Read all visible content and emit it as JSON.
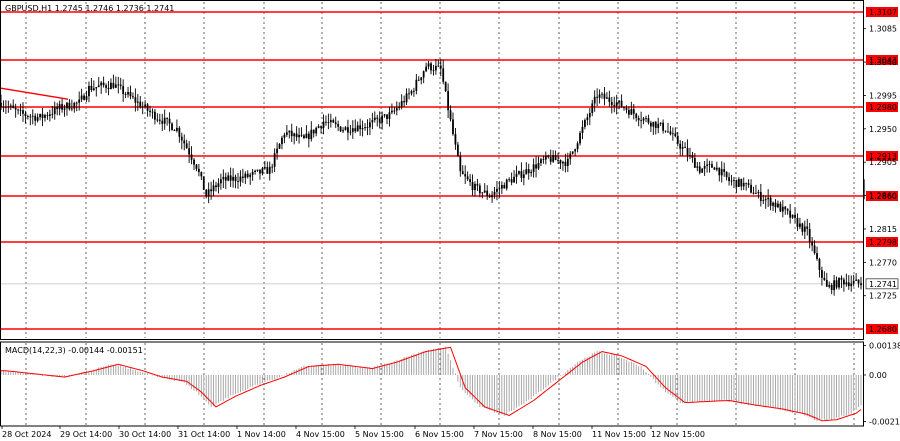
{
  "chart_data": [
    {
      "type": "candlestick",
      "title": "GBPUSD,H1  1.2745 1.2746 1.2736 1.2741",
      "colors": {
        "candle": "#000000",
        "level_line": "#ff0000",
        "level_label_bg": "#ff0000",
        "level_label_text": "#ffffff",
        "grid": "#000000",
        "price_line": "#c0c0c0"
      },
      "ylim": [
        1.2668,
        1.3121
      ],
      "y_ticks": [
        "1.3085",
        "1.3040",
        "1.2995",
        "1.2950",
        "1.2905",
        "1.2860",
        "1.2815",
        "1.2770",
        "1.2725"
      ],
      "levels": [
        "1.3107",
        "1.3043",
        "1.2980",
        "1.2913",
        "1.2860",
        "1.2798",
        "1.2680"
      ],
      "current_price": "1.2741",
      "trendline": {
        "from": {
          "x": "28 Oct 2024",
          "y": 1.3005
        },
        "to": {
          "x": "29 Oct 14:00",
          "y": 1.299
        }
      },
      "x_ticks": [
        "28 Oct 2024",
        "29 Oct 14:00",
        "30 Oct 14:00",
        "31 Oct 14:00",
        "1 Nov 14:00",
        "4 Nov 15:00",
        "5 Nov 15:00",
        "6 Nov 15:00",
        "7 Nov 15:00",
        "8 Nov 15:00",
        "11 Nov 15:00",
        "12 Nov 15:00"
      ],
      "close_path": [
        [
          0,
          1.2985
        ],
        [
          8,
          1.297
        ],
        [
          16,
          1.2965
        ],
        [
          24,
          1.2978
        ],
        [
          32,
          1.2985
        ],
        [
          36,
          1.3005
        ],
        [
          46,
          1.301
        ],
        [
          54,
          1.299
        ],
        [
          62,
          1.297
        ],
        [
          72,
          1.295
        ],
        [
          80,
          1.29
        ],
        [
          84,
          1.286
        ],
        [
          90,
          1.288
        ],
        [
          100,
          1.2885
        ],
        [
          110,
          1.2895
        ],
        [
          116,
          1.2945
        ],
        [
          124,
          1.2935
        ],
        [
          132,
          1.296
        ],
        [
          140,
          1.295
        ],
        [
          150,
          1.2955
        ],
        [
          160,
          1.297
        ],
        [
          168,
          1.3
        ],
        [
          174,
          1.3035
        ],
        [
          180,
          1.303
        ],
        [
          184,
          1.296
        ],
        [
          188,
          1.289
        ],
        [
          194,
          1.287
        ],
        [
          200,
          1.286
        ],
        [
          208,
          1.288
        ],
        [
          216,
          1.2895
        ],
        [
          224,
          1.291
        ],
        [
          232,
          1.2905
        ],
        [
          238,
          1.295
        ],
        [
          244,
          1.2995
        ],
        [
          252,
          1.2985
        ],
        [
          262,
          1.2965
        ],
        [
          272,
          1.295
        ],
        [
          280,
          1.292
        ],
        [
          286,
          1.2895
        ],
        [
          292,
          1.29
        ],
        [
          298,
          1.288
        ],
        [
          304,
          1.2875
        ],
        [
          310,
          1.286
        ],
        [
          316,
          1.285
        ],
        [
          322,
          1.2835
        ],
        [
          330,
          1.281
        ],
        [
          334,
          1.277
        ],
        [
          338,
          1.2735
        ],
        [
          344,
          1.2745
        ],
        [
          352,
          1.2741
        ]
      ],
      "candle_count": 353
    },
    {
      "type": "histogram",
      "title": "MACD(14,22,3) -0.00144 -0.00151",
      "colors": {
        "histogram": "#a0a0a0",
        "signal_line": "#ff0000"
      },
      "ylim": [
        -0.00235,
        0.0015
      ],
      "y_ticks": [
        "0.00138",
        "0.00",
        "-0.00219"
      ],
      "series": [
        {
          "values_path": [
            [
              0,
              0.0002
            ],
            [
              16,
              0.0
            ],
            [
              24,
              -0.0001
            ],
            [
              36,
              0.0002
            ],
            [
              46,
              0.0005
            ],
            [
              56,
              0.0002
            ],
            [
              64,
              -0.0001
            ],
            [
              74,
              -0.0003
            ],
            [
              80,
              -0.0008
            ],
            [
              86,
              -0.0015
            ],
            [
              94,
              -0.001
            ],
            [
              104,
              -0.0005
            ],
            [
              114,
              -0.0001
            ],
            [
              124,
              0.0004
            ],
            [
              136,
              0.0005
            ],
            [
              150,
              0.0003
            ],
            [
              160,
              0.0006
            ],
            [
              172,
              0.0011
            ],
            [
              182,
              0.0013
            ],
            [
              188,
              -0.0006
            ],
            [
              196,
              -0.0015
            ],
            [
              206,
              -0.0019
            ],
            [
              216,
              -0.0012
            ],
            [
              226,
              -0.0003
            ],
            [
              236,
              0.0006
            ],
            [
              244,
              0.0011
            ],
            [
              252,
              0.0009
            ],
            [
              262,
              0.0004
            ],
            [
              270,
              -0.0006
            ],
            [
              278,
              -0.0013
            ],
            [
              286,
              -0.00125
            ],
            [
              296,
              -0.0012
            ],
            [
              306,
              -0.0014
            ],
            [
              318,
              -0.0016
            ],
            [
              328,
              -0.00185
            ],
            [
              334,
              -0.00215
            ],
            [
              340,
              -0.0021
            ],
            [
              348,
              -0.0018
            ],
            [
              352,
              -0.00144
            ]
          ]
        }
      ]
    }
  ]
}
